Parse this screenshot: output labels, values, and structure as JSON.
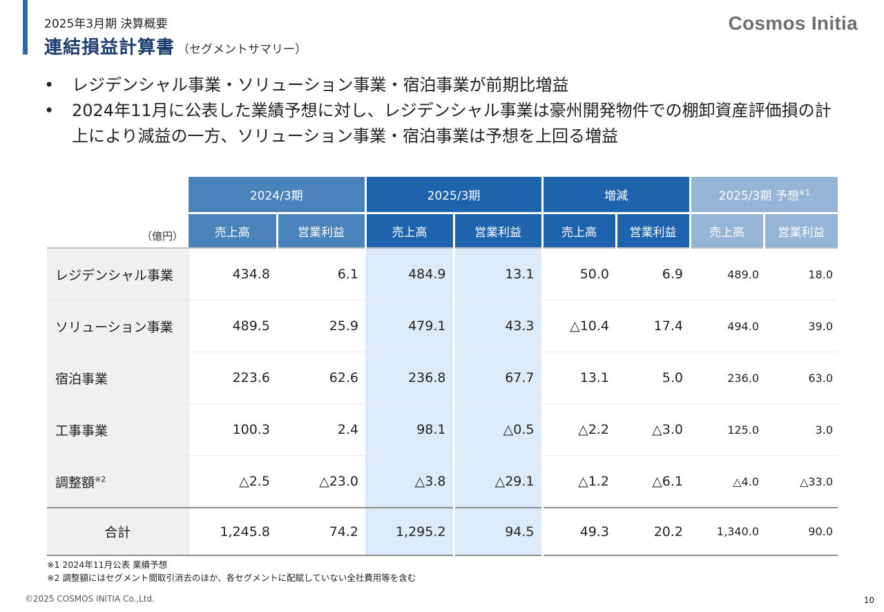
{
  "header": {
    "subtitle": "2025年3月期 決算概要",
    "title": "連結損益計算書",
    "title_suffix": "（セグメントサマリー）",
    "logo": "Cosmos Initia"
  },
  "bullets": [
    "レジデンシャル事業・ソリューション事業・宿泊事業が前期比増益",
    "2024年11月に公表した業績予想に対し、レジデンシャル事業は豪州開発物件での棚卸資産評価損の計上により減益の一方、ソリューション事業・宿泊事業は予想を上回る増益"
  ],
  "bullet_mark": "•",
  "table": {
    "unit": "（億円）",
    "groups": [
      "2024/3期",
      "2025/3期",
      "増減",
      "2025/3期 予想"
    ],
    "forecast_note_mark": "※1",
    "columns": [
      "売上高",
      "営業利益",
      "売上高",
      "営業利益",
      "売上高",
      "営業利益",
      "売上高",
      "営業利益"
    ],
    "rows": [
      {
        "label": "レジデンシャル事業",
        "values": [
          "434.8",
          "6.1",
          "484.9",
          "13.1",
          "50.0",
          "6.9",
          "489.0",
          "18.0"
        ]
      },
      {
        "label": "ソリューション事業",
        "values": [
          "489.5",
          "25.9",
          "479.1",
          "43.3",
          "△10.4",
          "17.4",
          "494.0",
          "39.0"
        ]
      },
      {
        "label": "宿泊事業",
        "values": [
          "223.6",
          "62.6",
          "236.8",
          "67.7",
          "13.1",
          "5.0",
          "236.0",
          "63.0"
        ]
      },
      {
        "label": "工事事業",
        "values": [
          "100.3",
          "2.4",
          "98.1",
          "△0.5",
          "△2.2",
          "△3.0",
          "125.0",
          "3.0"
        ]
      },
      {
        "label": "調整額",
        "note_mark": "※2",
        "values": [
          "△2.5",
          "△23.0",
          "△3.8",
          "△29.1",
          "△1.2",
          "△6.1",
          "△4.0",
          "△33.0"
        ]
      }
    ],
    "total": {
      "label": "合計",
      "values": [
        "1,245.8",
        "74.2",
        "1,295.2",
        "94.5",
        "49.3",
        "20.2",
        "1,340.0",
        "90.0"
      ]
    }
  },
  "notes": [
    "※1  2024年11月公表 業績予想",
    "※2  調整額にはセグメント間取引消去のほか、各セグメントに配賦していない全社費用等を含む"
  ],
  "footer": {
    "copyright": "©2025 COSMOS INITIA Co.,Ltd.",
    "page": "10"
  },
  "colors": {
    "accent_bar": "#2a6aad",
    "title": "#1b3e6e",
    "header_2024": "#4a83b9",
    "header_2025": "#1e64ad",
    "header_change": "#1e64ad",
    "header_forecast": "#95b4d6",
    "highlight_2025": "#dcebfa",
    "label_bg": "#f0f0f0"
  }
}
